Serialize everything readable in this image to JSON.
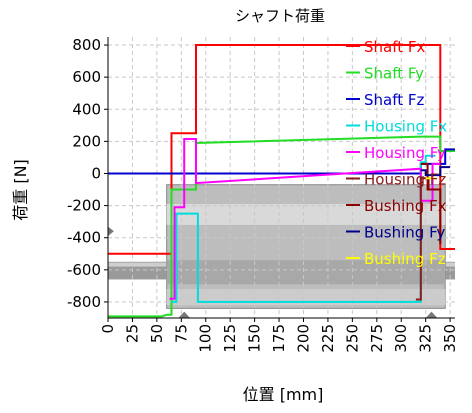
{
  "chart_data": {
    "type": "line",
    "title": "シャフト荷重",
    "xlabel": "位置 [mm]",
    "ylabel": "荷重 [N]",
    "xlim": [
      0,
      355
    ],
    "ylim": [
      -900,
      850
    ],
    "xticks": [
      0,
      25,
      50,
      75,
      100,
      125,
      150,
      175,
      200,
      225,
      250,
      275,
      300,
      325,
      350
    ],
    "yticks": [
      -800,
      -600,
      -400,
      -200,
      0,
      200,
      400,
      600,
      800
    ],
    "grid": true,
    "legend_position": "right",
    "background_shaft": true,
    "series": [
      {
        "name": "Shaft Fx",
        "color": "#ff0000",
        "points": [
          [
            0,
            -500
          ],
          [
            60,
            -500
          ],
          [
            60,
            -500
          ],
          [
            65,
            -500
          ],
          [
            65,
            250
          ],
          [
            90,
            250
          ],
          [
            90,
            800
          ],
          [
            340,
            800
          ],
          [
            340,
            -470
          ],
          [
            355,
            -470
          ]
        ]
      },
      {
        "name": "Shaft Fy",
        "color": "#22dd22",
        "points": [
          [
            0,
            -890
          ],
          [
            55,
            -890
          ],
          [
            60,
            -880
          ],
          [
            65,
            -880
          ],
          [
            65,
            -100
          ],
          [
            80,
            -100
          ],
          [
            90,
            -100
          ],
          [
            90,
            190
          ],
          [
            320,
            230
          ],
          [
            340,
            230
          ],
          [
            340,
            140
          ],
          [
            355,
            140
          ]
        ]
      },
      {
        "name": "Shaft Fz",
        "color": "#0000cc",
        "points": [
          [
            0,
            0
          ],
          [
            320,
            0
          ],
          [
            320,
            60
          ],
          [
            345,
            60
          ],
          [
            345,
            150
          ],
          [
            355,
            150
          ]
        ]
      },
      {
        "name": "Housing Fx",
        "color": "#00dddd",
        "points": [
          [
            65,
            -800
          ],
          [
            70,
            -800
          ],
          [
            70,
            -250
          ],
          [
            92,
            -250
          ],
          [
            92,
            -800
          ],
          [
            320,
            -800
          ],
          [
            320,
            70
          ],
          [
            325,
            70
          ],
          [
            325,
            110
          ],
          [
            335,
            110
          ]
        ]
      },
      {
        "name": "Housing Fy",
        "color": "#ff00ff",
        "points": [
          [
            63,
            -780
          ],
          [
            68,
            -780
          ],
          [
            68,
            -210
          ],
          [
            78,
            -210
          ],
          [
            78,
            215
          ],
          [
            90,
            215
          ],
          [
            90,
            -60
          ],
          [
            320,
            30
          ],
          [
            320,
            -170
          ],
          [
            332,
            -170
          ],
          [
            332,
            60
          ],
          [
            340,
            60
          ]
        ]
      },
      {
        "name": "Housing Fz",
        "color": "#8b1a1a",
        "points": [
          [
            315,
            -785
          ],
          [
            320,
            -785
          ],
          [
            320,
            -30
          ],
          [
            328,
            -30
          ],
          [
            328,
            -100
          ],
          [
            336,
            -100
          ]
        ]
      },
      {
        "name": "Bushing Fx",
        "color": "#8b0000",
        "points": [
          [
            320,
            60
          ],
          [
            327,
            60
          ],
          [
            327,
            -100
          ],
          [
            340,
            -100
          ],
          [
            340,
            -440
          ]
        ]
      },
      {
        "name": "Bushing Fy",
        "color": "#00008b",
        "points": [
          [
            320,
            20
          ],
          [
            325,
            20
          ],
          [
            325,
            -10
          ],
          [
            340,
            -10
          ],
          [
            340,
            40
          ],
          [
            350,
            40
          ]
        ]
      },
      {
        "name": "Bushing Fz",
        "color": "#ffff00",
        "points": [
          [
            325,
            -30
          ],
          [
            335,
            -30
          ]
        ]
      }
    ]
  }
}
